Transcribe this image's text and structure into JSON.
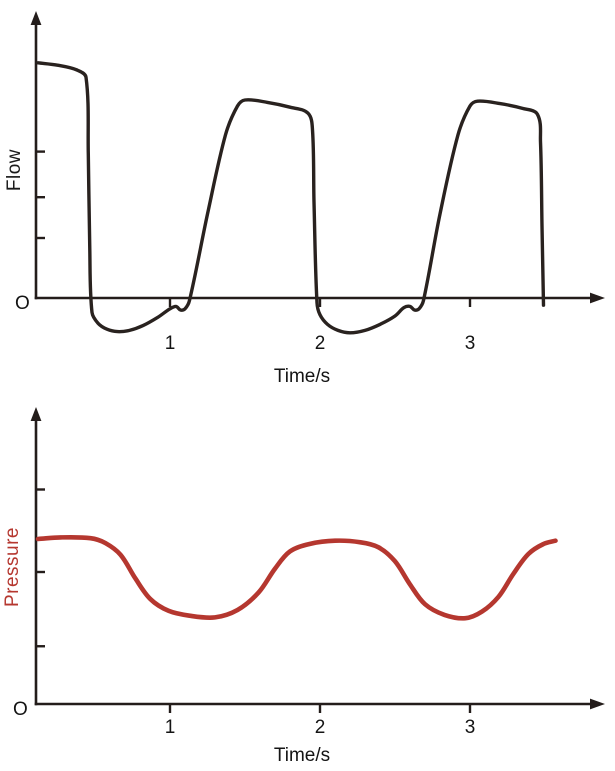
{
  "figure": {
    "background": "#ffffff"
  },
  "chart_data": [
    {
      "id": "flow-vs-time",
      "type": "line",
      "title": "",
      "ylabel": "Flow",
      "xlabel": "Time/s",
      "origin_label": "O",
      "line_color": "#29221f",
      "axis_color": "#241d1b",
      "grid": false,
      "legend": null,
      "x_tick_values": [
        1,
        2,
        3
      ],
      "x_tick_labels": [
        "1",
        "2",
        "3"
      ],
      "y_tick_values": [
        25,
        42,
        61
      ],
      "y_ticks_labeled": false,
      "x_range": [
        0,
        3.8
      ],
      "y_range": [
        -18,
        105
      ],
      "units": "arbitrary (no numeric flow scale shown)",
      "series": [
        {
          "name": "flow",
          "points": [
            [
              0.12,
              98
            ],
            [
              0.25,
              97
            ],
            [
              0.38,
              95
            ],
            [
              0.44,
              92
            ],
            [
              0.455,
              60
            ],
            [
              0.465,
              20
            ],
            [
              0.48,
              -6
            ],
            [
              0.52,
              -10.5
            ],
            [
              0.58,
              -13
            ],
            [
              0.65,
              -14
            ],
            [
              0.73,
              -13.5
            ],
            [
              0.82,
              -11.5
            ],
            [
              0.92,
              -8
            ],
            [
              1.0,
              -4.5
            ],
            [
              1.04,
              -3.5
            ],
            [
              1.07,
              -5
            ],
            [
              1.1,
              -4.5
            ],
            [
              1.13,
              -1
            ],
            [
              1.25,
              35
            ],
            [
              1.37,
              68
            ],
            [
              1.45,
              80
            ],
            [
              1.5,
              82.5
            ],
            [
              1.65,
              81.5
            ],
            [
              1.8,
              79.5
            ],
            [
              1.92,
              77
            ],
            [
              1.95,
              70
            ],
            [
              1.96,
              40
            ],
            [
              1.98,
              -2
            ],
            [
              2.0,
              -7
            ],
            [
              2.05,
              -11
            ],
            [
              2.12,
              -13.5
            ],
            [
              2.2,
              -14.5
            ],
            [
              2.3,
              -13.5
            ],
            [
              2.4,
              -11
            ],
            [
              2.5,
              -7.5
            ],
            [
              2.56,
              -4
            ],
            [
              2.6,
              -3.5
            ],
            [
              2.63,
              -5
            ],
            [
              2.66,
              -4.5
            ],
            [
              2.69,
              -1
            ],
            [
              2.8,
              35
            ],
            [
              2.92,
              68
            ],
            [
              3.0,
              80
            ],
            [
              3.05,
              82
            ],
            [
              3.2,
              81
            ],
            [
              3.35,
              79
            ],
            [
              3.45,
              76.5
            ],
            [
              3.47,
              65
            ],
            [
              3.48,
              30
            ],
            [
              3.49,
              -3
            ]
          ]
        }
      ]
    },
    {
      "id": "pressure-vs-time",
      "type": "line",
      "title": "",
      "ylabel": "Pressure",
      "ylabel_color": "#b5372f",
      "xlabel": "Time/s",
      "origin_label": "O",
      "line_color": "#b5372f",
      "axis_color": "#241d1b",
      "grid": false,
      "legend": null,
      "x_tick_values": [
        1,
        2,
        3
      ],
      "x_tick_labels": [
        "1",
        "2",
        "3"
      ],
      "y_tick_values": [
        7,
        16,
        26
      ],
      "y_ticks_labeled": false,
      "x_range": [
        0,
        3.8
      ],
      "y_range": [
        0,
        30
      ],
      "units": "arbitrary (no numeric pressure scale shown)",
      "series": [
        {
          "name": "pressure",
          "points": [
            [
              0.12,
              20.0
            ],
            [
              0.27,
              20.2
            ],
            [
              0.47,
              20.1
            ],
            [
              0.57,
              19.5
            ],
            [
              0.67,
              18.1
            ],
            [
              0.77,
              15.2
            ],
            [
              0.87,
              12.7
            ],
            [
              0.99,
              11.3
            ],
            [
              1.13,
              10.7
            ],
            [
              1.3,
              10.5
            ],
            [
              1.45,
              11.4
            ],
            [
              1.59,
              13.5
            ],
            [
              1.7,
              16.4
            ],
            [
              1.8,
              18.5
            ],
            [
              1.93,
              19.4
            ],
            [
              2.1,
              19.8
            ],
            [
              2.27,
              19.6
            ],
            [
              2.39,
              19.0
            ],
            [
              2.5,
              17.3
            ],
            [
              2.6,
              14.5
            ],
            [
              2.7,
              12.1
            ],
            [
              2.83,
              10.8
            ],
            [
              2.97,
              10.4
            ],
            [
              3.08,
              11.2
            ],
            [
              3.19,
              13.0
            ],
            [
              3.29,
              15.8
            ],
            [
              3.39,
              18.2
            ],
            [
              3.49,
              19.4
            ],
            [
              3.57,
              19.8
            ]
          ]
        }
      ]
    }
  ]
}
